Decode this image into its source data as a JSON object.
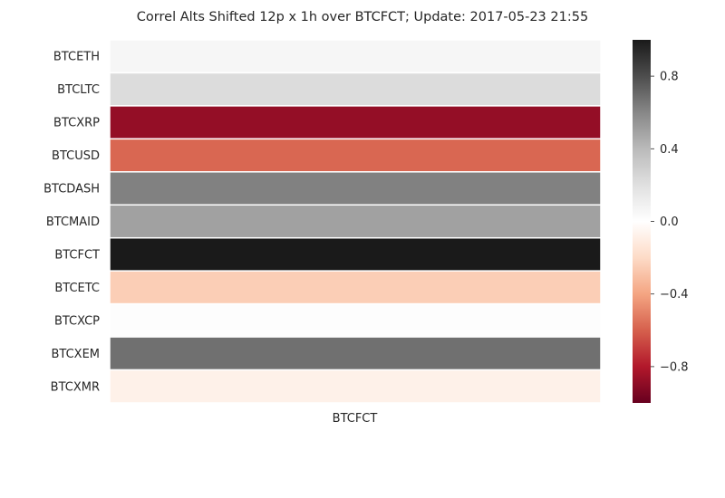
{
  "chart_data": {
    "type": "heatmap",
    "title": "Correl Alts Shifted 12p x 1h over BTCFCT; Update: 2017-05-23 21:55",
    "columns": [
      "BTCFCT"
    ],
    "rows": [
      "BTCETH",
      "BTCLTC",
      "BTCXRP",
      "BTCUSD",
      "BTCDASH",
      "BTCMAID",
      "BTCFCT",
      "BTCETC",
      "BTCXCP",
      "BTCXEM",
      "BTCXMR"
    ],
    "values": [
      0.06,
      0.22,
      -0.88,
      -0.58,
      0.62,
      0.5,
      1.0,
      -0.25,
      0.01,
      0.68,
      -0.08
    ],
    "colorbar": {
      "range": [
        -1,
        1
      ],
      "ticks": [
        0.8,
        0.4,
        0.0,
        -0.4,
        -0.8
      ],
      "tick_labels": [
        "0.8",
        "0.4",
        "0.0",
        "−0.4",
        "−0.8"
      ]
    },
    "colormap": [
      "#67001f",
      "#b2182b",
      "#d6604d",
      "#f4a582",
      "#fddbc7",
      "#ffffff",
      "#e0e0e0",
      "#bababa",
      "#878787",
      "#4d4d4d",
      "#1a1a1a"
    ]
  }
}
